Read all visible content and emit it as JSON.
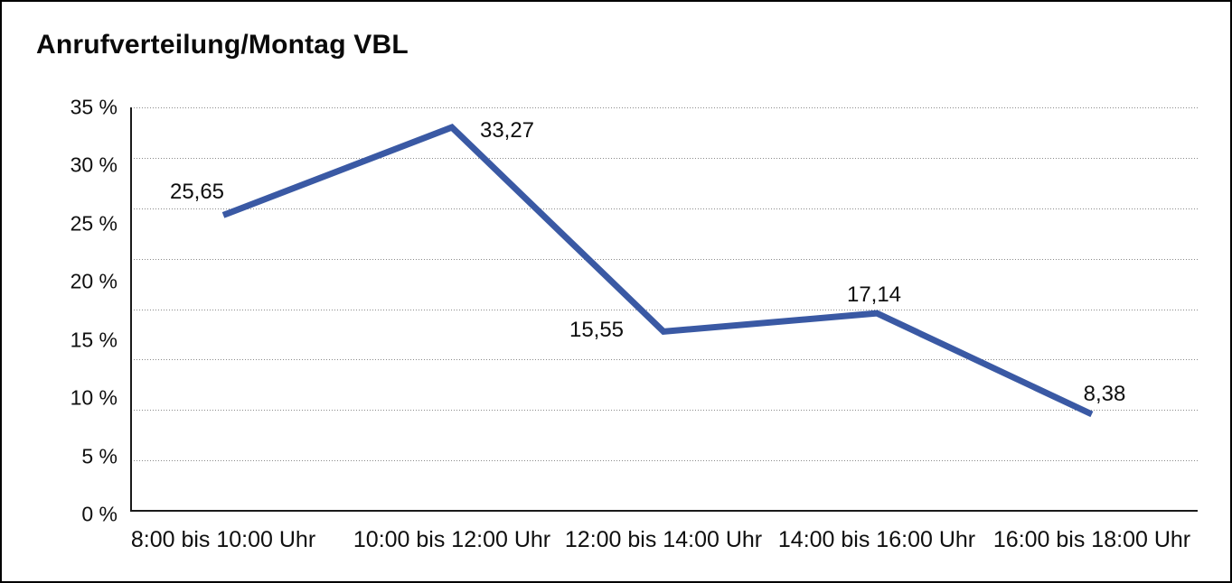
{
  "title": "Anrufverteilung/Montag VBL",
  "chart_data": {
    "type": "line",
    "title": "Anrufverteilung/Montag VBL",
    "categories": [
      "8:00 bis 10:00 Uhr",
      "10:00 bis 12:00 Uhr",
      "12:00 bis 14:00 Uhr",
      "14:00 bis 16:00 Uhr",
      "16:00 bis 18:00 Uhr"
    ],
    "values": [
      25.65,
      33.27,
      15.55,
      17.14,
      8.38
    ],
    "data_labels": [
      "25,65",
      "33,27",
      "15,55",
      "17,14",
      "8,38"
    ],
    "y_ticks": [
      "35 %",
      "30 %",
      "25 %",
      "20 %",
      "15 %",
      "10 %",
      "5 %",
      "0 %"
    ],
    "xlabel": "",
    "ylabel": "",
    "ylim": [
      0,
      35
    ],
    "grid": "horizontal-dotted",
    "legend": "none",
    "line_color": "#3a59a4",
    "text_color": "#0f0f0f",
    "grid_color": "#8a8a8a",
    "axis_color": "#1a1a1a",
    "frame_border_color": "#000000"
  }
}
